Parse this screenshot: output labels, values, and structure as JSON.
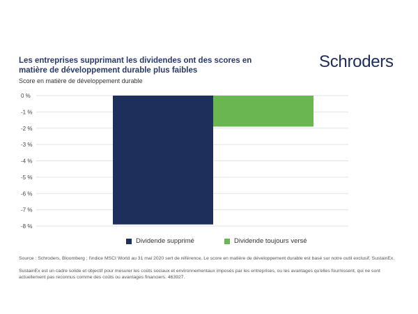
{
  "header": {
    "title": "Les entreprises supprimant les dividendes ont des scores en matière de développement durable plus faibles",
    "logo": "Schroders"
  },
  "chart_data": {
    "type": "bar",
    "title": "Les entreprises supprimant les dividendes ont des scores en matière de développement durable plus faibles",
    "ylabel": "Score en matière de développement durable",
    "xlabel": "",
    "categories": [
      "Dividende supprimé",
      "Dividende toujours versé"
    ],
    "values": [
      -7.9,
      -1.9
    ],
    "colors": [
      "#1f2f5c",
      "#6ab651"
    ],
    "ylim": [
      -8,
      0
    ],
    "yticks": [
      0,
      -1,
      -2,
      -3,
      -4,
      -5,
      -6,
      -7,
      -8
    ],
    "ytick_labels": [
      "0 %",
      "-1 %",
      "-2 %",
      "-3 %",
      "-4 %",
      "-5 %",
      "-6 %",
      "-7 %",
      "-8 %"
    ],
    "grid": true,
    "legend": "bottom"
  },
  "footer": {
    "source": "Source : Schroders, Bloomberg ; l'indice MSCI World au 31 mai 2020 sert de référence. Le score en matière de développement durable est basé sur notre outil exclusif, SustainEx.",
    "note": "SustainEx est un cadre solide et objectif pour mesurer les coûts sociaux et environnementaux imposés par les entreprises, ou les avantages qu'elles fournissent, qui ne sont actuellement pas reconnus comme des coûts ou avantages financiers. 463927."
  }
}
